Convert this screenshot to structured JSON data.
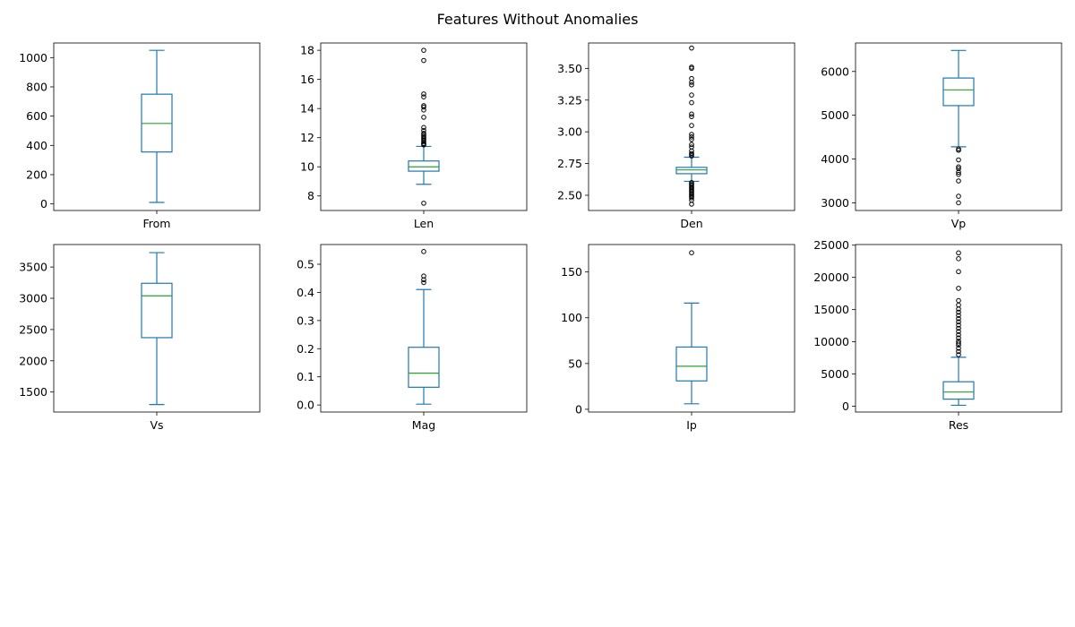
{
  "figure": {
    "title": "Features Without Anomalies"
  },
  "colors": {
    "box": "#1f77b4",
    "median": "#2ca02c",
    "flier": "#000000"
  },
  "chart_data": [
    {
      "type": "box",
      "category": "From",
      "ylim": [
        -45,
        1100
      ],
      "yticks": [
        0,
        200,
        400,
        600,
        800,
        1000
      ],
      "tick_decimals": 0,
      "q1": 355,
      "median": 550,
      "q3": 750,
      "whisker_low": 10,
      "whisker_high": 1050,
      "outliers": []
    },
    {
      "type": "box",
      "category": "Len",
      "ylim": [
        7.0,
        18.5
      ],
      "yticks": [
        8,
        10,
        12,
        14,
        16,
        18
      ],
      "tick_decimals": 0,
      "q1": 9.7,
      "median": 10.0,
      "q3": 10.4,
      "whisker_low": 8.8,
      "whisker_high": 11.4,
      "outliers": [
        7.5,
        11.5,
        11.55,
        11.6,
        11.7,
        11.8,
        11.9,
        12.0,
        12.1,
        12.2,
        12.3,
        12.5,
        12.7,
        13.4,
        13.9,
        14.1,
        14.2,
        14.8,
        15.0,
        17.3,
        18.0
      ]
    },
    {
      "type": "box",
      "category": "Den",
      "ylim": [
        2.38,
        3.7
      ],
      "yticks": [
        2.5,
        2.75,
        3.0,
        3.25,
        3.5
      ],
      "tick_decimals": 2,
      "q1": 2.67,
      "median": 2.7,
      "q3": 2.72,
      "whisker_low": 2.61,
      "whisker_high": 2.8,
      "outliers": [
        2.43,
        2.46,
        2.48,
        2.49,
        2.5,
        2.51,
        2.52,
        2.53,
        2.54,
        2.55,
        2.56,
        2.57,
        2.58,
        2.59,
        2.6,
        2.81,
        2.82,
        2.83,
        2.85,
        2.88,
        2.9,
        2.94,
        2.96,
        2.98,
        3.05,
        3.12,
        3.14,
        3.23,
        3.29,
        3.37,
        3.39,
        3.42,
        3.5,
        3.51,
        3.66
      ]
    },
    {
      "type": "box",
      "category": "Vp",
      "ylim": [
        2825,
        6650
      ],
      "yticks": [
        3000,
        4000,
        5000,
        6000
      ],
      "tick_decimals": 0,
      "q1": 5220,
      "median": 5580,
      "q3": 5850,
      "whisker_low": 4280,
      "whisker_high": 6480,
      "outliers": [
        3000,
        3150,
        3500,
        3650,
        3700,
        3780,
        3820,
        3980,
        4200,
        4230
      ]
    },
    {
      "type": "box",
      "category": "Vs",
      "ylim": [
        1180,
        3860
      ],
      "yticks": [
        1500,
        2000,
        2500,
        3000,
        3500
      ],
      "tick_decimals": 0,
      "q1": 2370,
      "median": 3040,
      "q3": 3240,
      "whisker_low": 1300,
      "whisker_high": 3730,
      "outliers": []
    },
    {
      "type": "box",
      "category": "Mag",
      "ylim": [
        -0.025,
        0.57
      ],
      "yticks": [
        0.0,
        0.1,
        0.2,
        0.3,
        0.4,
        0.5
      ],
      "tick_decimals": 1,
      "q1": 0.063,
      "median": 0.113,
      "q3": 0.205,
      "whisker_low": 0.003,
      "whisker_high": 0.41,
      "outliers": [
        0.435,
        0.445,
        0.458,
        0.545
      ]
    },
    {
      "type": "box",
      "category": "Ip",
      "ylim": [
        -3,
        180
      ],
      "yticks": [
        0,
        50,
        100,
        150
      ],
      "tick_decimals": 0,
      "q1": 31,
      "median": 47,
      "q3": 68,
      "whisker_low": 6,
      "whisker_high": 116,
      "outliers": [
        171
      ]
    },
    {
      "type": "box",
      "category": "Res",
      "ylim": [
        -900,
        25100
      ],
      "yticks": [
        0,
        5000,
        10000,
        15000,
        20000,
        25000
      ],
      "tick_decimals": 0,
      "q1": 1100,
      "median": 2200,
      "q3": 3800,
      "whisker_low": 150,
      "whisker_high": 7600,
      "outliers": [
        8000,
        8500,
        9000,
        9500,
        9800,
        10100,
        10600,
        11100,
        11600,
        12100,
        12600,
        13100,
        13600,
        14100,
        14600,
        15100,
        15700,
        16400,
        18300,
        20900,
        22900,
        23800
      ]
    }
  ]
}
